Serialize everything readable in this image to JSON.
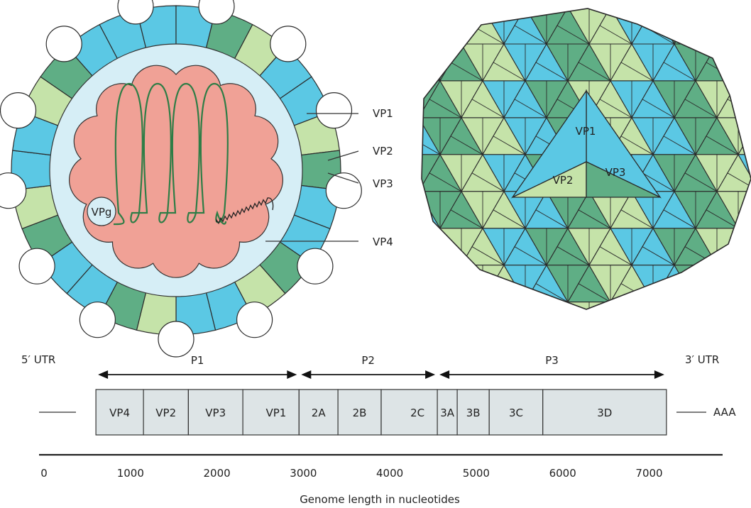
{
  "colors": {
    "blue": "#5bc8e4",
    "dark_green": "#5fae85",
    "light_green": "#c5e3a9",
    "pale_blue": "#d6eef6",
    "rna_fill": "#f0a196",
    "rna_strand": "#2e7d46",
    "genome_box": "#dde4e6"
  },
  "capsid_cross_section": {
    "labels": {
      "vp1": "VP1",
      "vp2": "VP2",
      "vp3": "VP3",
      "vp4": "VP4",
      "vpg": "VPg"
    }
  },
  "capsid_exterior": {
    "labels": {
      "vp1": "VP1",
      "vp2": "VP2",
      "vp3": "VP3"
    }
  },
  "genome_map": {
    "utr5": "5′ UTR",
    "utr3": "3′ UTR",
    "polyA": "AAA",
    "regions": [
      {
        "name": "P1",
        "start": 600,
        "end": 2950
      },
      {
        "name": "P2",
        "start": 2950,
        "end": 4550
      },
      {
        "name": "P3",
        "start": 4550,
        "end": 7200
      }
    ],
    "segments": [
      {
        "name": "VP4",
        "start": 600,
        "end": 1150,
        "align": "center"
      },
      {
        "name": "VP2",
        "start": 1150,
        "end": 1670,
        "align": "center"
      },
      {
        "name": "VP3",
        "start": 1670,
        "end": 2300,
        "align": "center"
      },
      {
        "name": "VP1",
        "start": 2300,
        "end": 2950,
        "align": "right"
      },
      {
        "name": "2A",
        "start": 2950,
        "end": 3400,
        "align": "center"
      },
      {
        "name": "2B",
        "start": 3400,
        "end": 3900,
        "align": "center"
      },
      {
        "name": "2C",
        "start": 3900,
        "end": 4550,
        "align": "right"
      },
      {
        "name": "3A",
        "start": 4550,
        "end": 4780,
        "align": "center"
      },
      {
        "name": "3B",
        "start": 4780,
        "end": 5150,
        "align": "center"
      },
      {
        "name": "3C",
        "start": 5150,
        "end": 5770,
        "align": "center"
      },
      {
        "name": "3D",
        "start": 5770,
        "end": 7200,
        "align": "center"
      }
    ],
    "axis": {
      "ticks": [
        0,
        1000,
        2000,
        3000,
        4000,
        5000,
        6000,
        7000
      ],
      "label": "Genome length in nucleotides"
    }
  }
}
